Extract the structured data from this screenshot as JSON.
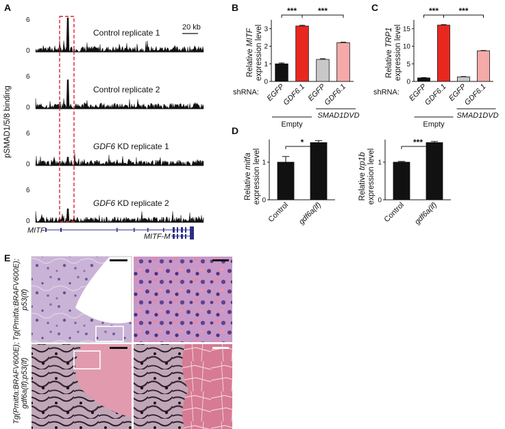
{
  "panels": {
    "A": {
      "label": "A",
      "ylabel": "pSMAD1/5/8 binding",
      "scale_bar": "20 kb",
      "tracks": [
        {
          "name": "Control replicate 1",
          "ymax": "6",
          "ymin": "0",
          "peak": 1.0,
          "second": 0.55,
          "noise": 0.35
        },
        {
          "name": "Control replicate 2",
          "ymax": "6",
          "ymin": "0",
          "peak": 0.85,
          "second": 0.5,
          "noise": 0.3
        },
        {
          "name_italic": "GDF6",
          "name_rest": " KD replicate 1",
          "ymax": "6",
          "ymin": "0",
          "peak": 0.25,
          "second": 0.2,
          "noise": 0.32
        },
        {
          "name_italic": "GDF6",
          "name_rest": " KD replicate 2",
          "ymax": "6",
          "ymin": "0",
          "peak": 0.4,
          "second": 0.32,
          "noise": 0.28
        }
      ],
      "gene1": "MITF",
      "gene2": "MITF-M"
    },
    "B": {
      "label": "B",
      "ylabel_line1_pre": "Relative ",
      "ylabel_line1_ital": "MITF",
      "ylabel_line2": "expression level",
      "shrna": "shRNA:",
      "group1": "Empty",
      "group2": "SMAD1DVD",
      "stars1": "***",
      "stars2": "***"
    },
    "C": {
      "label": "C",
      "ylabel_line1_pre": "Relative ",
      "ylabel_line1_ital": "TRP1",
      "ylabel_line2": "expression level",
      "shrna": "shRNA:",
      "group1": "Empty",
      "group2": "SMAD1DVD",
      "stars1": "***",
      "stars2": "***"
    },
    "D": {
      "label": "D",
      "left": {
        "ylabel_line1_pre": "Relative ",
        "ylabel_line1_ital": "mitfa",
        "ylabel_line2": "expression level",
        "stars": "*"
      },
      "right": {
        "ylabel_line1_pre": "Relative ",
        "ylabel_line1_ital": "trp1b",
        "ylabel_line2": "expression level",
        "stars": "***"
      }
    },
    "E": {
      "label": "E",
      "row1": "Tg(Pmitfa:BRAFV600E);",
      "row1b": "p53(lf)",
      "row2": "Tg(Pmitfa:BRAFV600E);",
      "row2b": "gdf6a(lf);p53(lf)"
    }
  },
  "chart_data": [
    {
      "type": "bar",
      "panel": "B",
      "categories": [
        "EGFP",
        "GDF6.1",
        "EGFP",
        "GDF6.1"
      ],
      "groups": [
        "Empty",
        "Empty",
        "SMAD1DVD",
        "SMAD1DVD"
      ],
      "values": [
        1.0,
        3.15,
        1.25,
        2.2
      ],
      "errors": [
        0.05,
        0.04,
        0.04,
        0.03
      ],
      "colors": [
        "#111111",
        "#e8281e",
        "#c8c8c8",
        "#f5a9a9"
      ],
      "ylabel": "Relative MITF expression level",
      "ylim": [
        0,
        3.5
      ],
      "yticks": [
        0,
        1,
        2,
        3
      ]
    },
    {
      "type": "bar",
      "panel": "C",
      "categories": [
        "EGFP",
        "GDF6.1",
        "EGFP",
        "GDF6.1"
      ],
      "groups": [
        "Empty",
        "Empty",
        "SMAD1DVD",
        "SMAD1DVD"
      ],
      "values": [
        1.0,
        16.0,
        1.3,
        8.7
      ],
      "errors": [
        0.1,
        0.15,
        0.1,
        0.1
      ],
      "colors": [
        "#111111",
        "#e8281e",
        "#c8c8c8",
        "#f5a9a9"
      ],
      "ylabel": "Relative TRP1 expression level",
      "ylim": [
        0,
        17.5
      ],
      "yticks": [
        0,
        5,
        10,
        15
      ]
    },
    {
      "type": "bar",
      "panel": "D-left",
      "categories": [
        "Control",
        "gdf6a(lf)"
      ],
      "values": [
        1.0,
        1.52
      ],
      "errors": [
        0.15,
        0.05
      ],
      "colors": [
        "#111111",
        "#111111"
      ],
      "ylabel": "Relative mitfa expression level",
      "ylim": [
        0,
        1.6
      ],
      "yticks": [
        0,
        1
      ]
    },
    {
      "type": "bar",
      "panel": "D-right",
      "categories": [
        "Control",
        "gdf6a(lf)"
      ],
      "values": [
        1.0,
        1.52
      ],
      "errors": [
        0.02,
        0.03
      ],
      "colors": [
        "#111111",
        "#111111"
      ],
      "ylabel": "Relative trp1b expression level",
      "ylim": [
        0,
        1.6
      ],
      "yticks": [
        0,
        1
      ]
    }
  ]
}
